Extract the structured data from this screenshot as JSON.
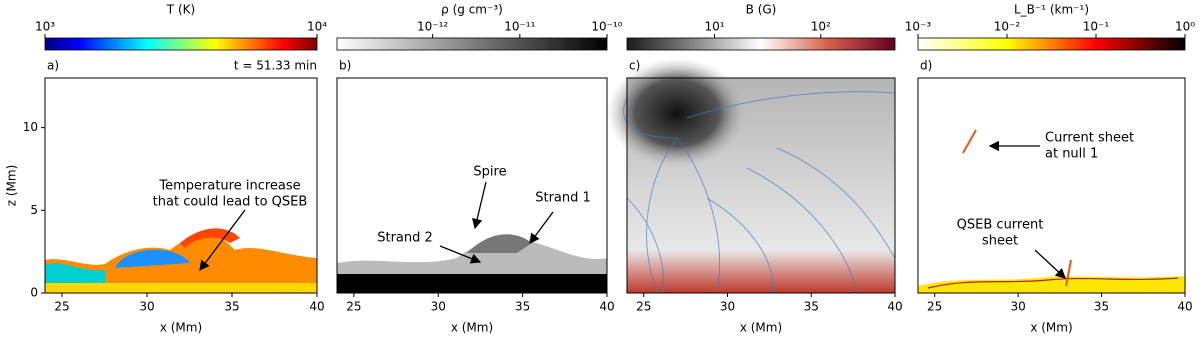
{
  "chart_data": [
    {
      "type": "image",
      "panel_label": "a)",
      "time_label": "t = 51.33 min",
      "colorbar": {
        "label": "T (K)",
        "log": true,
        "lim": [
          1000,
          10000
        ],
        "ticks": [
          {
            "value": 1000,
            "label": "10³"
          },
          {
            "value": 10000,
            "label": "10⁴"
          }
        ],
        "colors": [
          "#00007f",
          "#0000ff",
          "#007fff",
          "#00ffff",
          "#7fff7f",
          "#ffff00",
          "#ff7f00",
          "#ff0000",
          "#7f0000"
        ]
      },
      "xlabel": "x (Mm)",
      "xlim": [
        24,
        40
      ],
      "xticks": [
        25,
        30,
        35,
        40
      ],
      "ylabel": "z (Mm)",
      "ylim": [
        0,
        13
      ],
      "yticks": [
        0,
        5,
        10
      ],
      "annotations": [
        {
          "lines": [
            "Temperature increase",
            "that could lead to QSEB"
          ]
        }
      ]
    },
    {
      "type": "image",
      "panel_label": "b)",
      "colorbar": {
        "label": "ρ (g cm⁻³)",
        "log": true,
        "lim": [
          8e-14,
          1e-10
        ],
        "ticks": [
          {
            "value": 1e-12,
            "label": "10⁻¹²"
          },
          {
            "value": 1e-11,
            "label": "10⁻¹¹"
          },
          {
            "value": 1e-10,
            "label": "10⁻¹⁰"
          }
        ],
        "colors": [
          "#ffffff",
          "#000000"
        ]
      },
      "xlabel": "x (Mm)",
      "xlim": [
        24,
        40
      ],
      "xticks": [
        25,
        30,
        35,
        40
      ],
      "annotations": [
        {
          "lines": [
            "Spire"
          ]
        },
        {
          "lines": [
            "Strand 1"
          ]
        },
        {
          "lines": [
            "Strand 2"
          ]
        }
      ]
    },
    {
      "type": "image",
      "panel_label": "c)",
      "colorbar": {
        "label": "B (G)",
        "log": true,
        "lim": [
          1.5,
          500
        ],
        "ticks": [
          {
            "value": 10,
            "label": "10¹"
          },
          {
            "value": 100,
            "label": "10²"
          }
        ],
        "colors": [
          "#1a1a1a",
          "#878787",
          "#ffffff",
          "#d6604d",
          "#67001f"
        ]
      },
      "xlabel": "x (Mm)",
      "xlim": [
        24,
        40
      ],
      "xticks": [
        25,
        30,
        35,
        40
      ],
      "annotations": []
    },
    {
      "type": "image",
      "panel_label": "d)",
      "colorbar": {
        "label": "L_B⁻¹ (km⁻¹)",
        "log": true,
        "lim": [
          0.001,
          1
        ],
        "ticks": [
          {
            "value": 0.001,
            "label": "10⁻³"
          },
          {
            "value": 0.01,
            "label": "10⁻²"
          },
          {
            "value": 0.1,
            "label": "10⁻¹"
          },
          {
            "value": 1,
            "label": "10⁰"
          }
        ],
        "colors": [
          "#ffffff",
          "#ffff00",
          "#ff0000",
          "#000000"
        ]
      },
      "xlabel": "x (Mm)",
      "xlim": [
        24,
        40
      ],
      "xticks": [
        25,
        30,
        35,
        40
      ],
      "annotations": [
        {
          "lines": [
            "Current sheet",
            "at null 1"
          ]
        },
        {
          "lines": [
            "QSEB current",
            "sheet"
          ]
        }
      ]
    }
  ]
}
